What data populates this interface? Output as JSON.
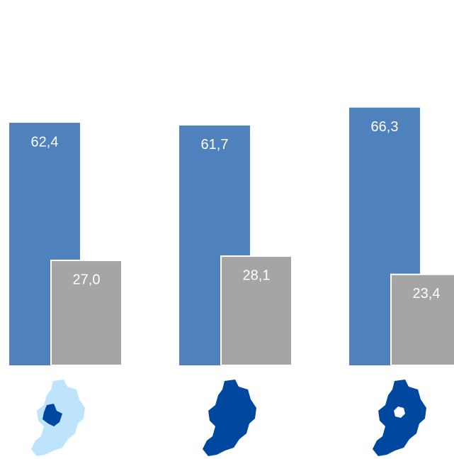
{
  "chart_data": {
    "type": "bar",
    "categories": [
      null,
      null,
      null
    ],
    "series": [
      {
        "color": "#4f81bd",
        "values": [
          62.4,
          61.7,
          66.3
        ],
        "value_labels": [
          "62,4",
          "61,7",
          "66,3"
        ]
      },
      {
        "color": "#a5a5a5",
        "values": [
          27.0,
          28.1,
          23.4
        ],
        "value_labels": [
          "27,0",
          "28,1",
          "23,4"
        ]
      }
    ]
  }
}
